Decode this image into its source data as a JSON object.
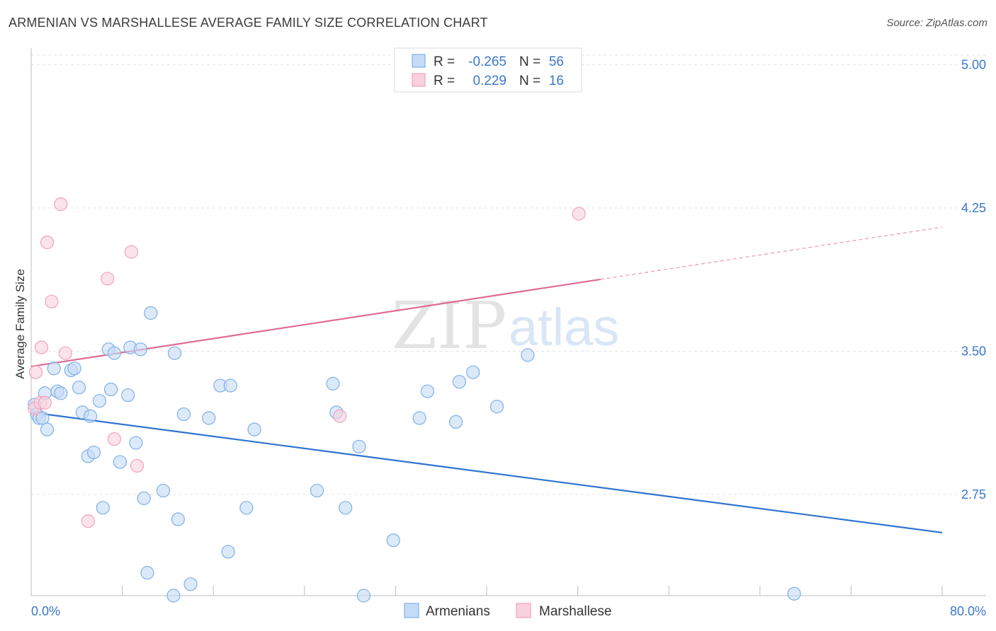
{
  "title": "ARMENIAN VS MARSHALLESE AVERAGE FAMILY SIZE CORRELATION CHART",
  "source": "Source: ZipAtlas.com",
  "watermark": {
    "zip": "ZIP",
    "atlas": "atlas"
  },
  "chart_data": {
    "type": "scatter",
    "ylabel": "Average Family Size",
    "xlim": [
      0,
      80
    ],
    "ylim": [
      2.22,
      5.08
    ],
    "x_tick_labels": [
      {
        "value": 0,
        "label": "0.0%"
      },
      {
        "value": 80,
        "label": "80.0%"
      }
    ],
    "y_ticks": [
      {
        "value": 5.0,
        "label": "5.00"
      },
      {
        "value": 4.25,
        "label": "4.25"
      },
      {
        "value": 3.5,
        "label": "3.50"
      },
      {
        "value": 2.75,
        "label": "2.75"
      }
    ],
    "legend": {
      "rows": [
        {
          "r_label": "R =",
          "r_value": "-0.265",
          "n_label": "N =",
          "n_value": "56"
        },
        {
          "r_label": "R =",
          "r_value": "0.229",
          "n_label": "N =",
          "n_value": "16"
        }
      ]
    },
    "series": [
      {
        "name": "Armenians",
        "color": "#7fb0e8",
        "fill": "#c5dbf5",
        "line_color": "#2f74d0",
        "trend": {
          "x0": 0,
          "y0": 3.18,
          "x1": 80,
          "y1": 2.55,
          "solid_until": 80
        },
        "points": [
          [
            0.3,
            3.22
          ],
          [
            0.5,
            3.17
          ],
          [
            0.7,
            3.15
          ],
          [
            1.0,
            3.15
          ],
          [
            1.2,
            3.28
          ],
          [
            1.4,
            3.09
          ],
          [
            2.0,
            3.41
          ],
          [
            2.3,
            3.29
          ],
          [
            2.6,
            3.28
          ],
          [
            3.5,
            3.4
          ],
          [
            3.8,
            3.41
          ],
          [
            4.2,
            3.31
          ],
          [
            4.5,
            3.18
          ],
          [
            5.0,
            2.95
          ],
          [
            5.2,
            3.16
          ],
          [
            5.5,
            2.97
          ],
          [
            6.0,
            3.24
          ],
          [
            6.3,
            2.68
          ],
          [
            6.8,
            3.51
          ],
          [
            7.0,
            3.3
          ],
          [
            7.3,
            3.49
          ],
          [
            7.8,
            2.92
          ],
          [
            8.5,
            3.27
          ],
          [
            8.7,
            3.52
          ],
          [
            9.2,
            3.02
          ],
          [
            9.6,
            3.51
          ],
          [
            9.9,
            2.73
          ],
          [
            10.5,
            3.7
          ],
          [
            11.6,
            2.77
          ],
          [
            12.6,
            3.49
          ],
          [
            12.9,
            2.62
          ],
          [
            13.4,
            3.17
          ],
          [
            14.0,
            2.28
          ],
          [
            15.6,
            3.15
          ],
          [
            16.6,
            3.32
          ],
          [
            17.3,
            2.45
          ],
          [
            17.5,
            3.32
          ],
          [
            18.9,
            2.68
          ],
          [
            19.6,
            3.09
          ],
          [
            25.1,
            2.77
          ],
          [
            26.5,
            3.33
          ],
          [
            26.8,
            3.18
          ],
          [
            27.6,
            2.68
          ],
          [
            28.8,
            3.0
          ],
          [
            31.8,
            2.51
          ],
          [
            34.1,
            3.15
          ],
          [
            34.8,
            3.29
          ],
          [
            37.3,
            3.13
          ],
          [
            37.6,
            3.34
          ],
          [
            38.8,
            3.39
          ],
          [
            40.9,
            3.21
          ],
          [
            43.6,
            3.48
          ],
          [
            10.2,
            2.34
          ],
          [
            12.5,
            2.22
          ],
          [
            29.2,
            2.22
          ],
          [
            67.0,
            2.23
          ]
        ]
      },
      {
        "name": "Marshallese",
        "color": "#f0a3bb",
        "fill": "#f9d0dd",
        "line_color": "#e06b93",
        "trend": {
          "x0": 0,
          "y0": 3.42,
          "x1": 80,
          "y1": 4.15,
          "solid_until": 50
        },
        "points": [
          [
            0.3,
            3.2
          ],
          [
            0.4,
            3.39
          ],
          [
            0.8,
            3.23
          ],
          [
            0.9,
            3.52
          ],
          [
            1.2,
            3.23
          ],
          [
            1.4,
            4.07
          ],
          [
            1.8,
            3.76
          ],
          [
            2.6,
            4.27
          ],
          [
            3.0,
            3.49
          ],
          [
            6.7,
            3.88
          ],
          [
            7.3,
            3.04
          ],
          [
            8.8,
            4.02
          ],
          [
            9.3,
            2.9
          ],
          [
            5.0,
            2.61
          ],
          [
            27.1,
            3.16
          ],
          [
            48.1,
            4.22
          ]
        ]
      }
    ]
  }
}
